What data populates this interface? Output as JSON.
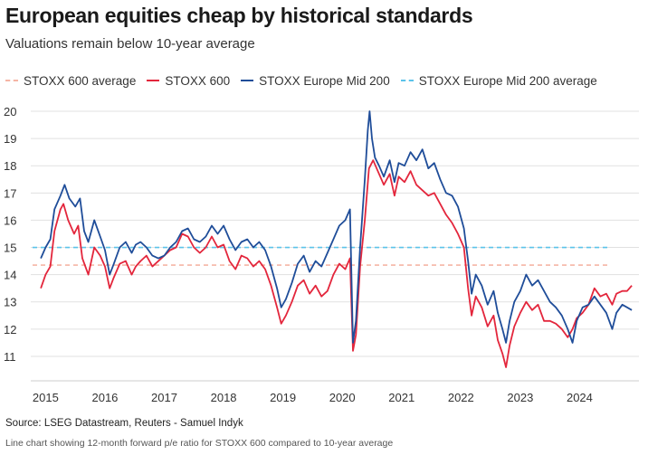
{
  "title": "European equities cheap by historical standards",
  "subtitle": "Valuations remain below 10-year average",
  "source": "Source: LSEG Datastream, Reuters - Samuel Indyk",
  "alt_text": "Line chart showing 12-month forward p/e ratio for STOXX 600 compared to 10-year average",
  "legend": [
    {
      "label": "STOXX 600 average",
      "style": "dash",
      "color": "#f5b5a5"
    },
    {
      "label": "STOXX 600",
      "style": "solid",
      "color": "#e3263c"
    },
    {
      "label": "STOXX Europe Mid 200",
      "style": "solid",
      "color": "#1f4d99"
    },
    {
      "label": "STOXX Europe Mid 200 average",
      "style": "dash",
      "color": "#5bc3ea"
    }
  ],
  "chart_data": {
    "type": "line",
    "ylim": [
      10.5,
      20.2
    ],
    "xlim": [
      2014.75,
      2025.0
    ],
    "y_ticks": [
      20,
      19,
      18,
      17,
      16,
      15,
      14,
      13,
      12,
      11
    ],
    "x_ticks": [
      {
        "value": 2015.0,
        "label": "2015"
      },
      {
        "value": 2016.0,
        "label": "2016"
      },
      {
        "value": 2017.0,
        "label": "2017"
      },
      {
        "value": 2018.0,
        "label": "2018"
      },
      {
        "value": 2019.0,
        "label": "2019"
      },
      {
        "value": 2020.0,
        "label": "2020"
      },
      {
        "value": 2021.0,
        "label": "2021"
      },
      {
        "value": 2022.0,
        "label": "2022"
      },
      {
        "value": 2023.0,
        "label": "2023"
      },
      {
        "value": 2024.0,
        "label": "2024"
      }
    ],
    "grid": "horizontal",
    "legend_position": "top",
    "reference_lines": [
      {
        "name": "STOXX 600 average",
        "y": 14.35,
        "color": "#f5b5a5"
      },
      {
        "name": "STOXX Europe Mid 200 average",
        "y": 15.0,
        "color": "#5bc3ea"
      }
    ],
    "series": [
      {
        "name": "STOXX 600",
        "color": "#e3263c",
        "points": [
          [
            2014.92,
            13.5
          ],
          [
            2015.0,
            14.0
          ],
          [
            2015.08,
            14.3
          ],
          [
            2015.15,
            15.6
          ],
          [
            2015.25,
            16.4
          ],
          [
            2015.3,
            16.6
          ],
          [
            2015.38,
            16.0
          ],
          [
            2015.48,
            15.5
          ],
          [
            2015.55,
            15.8
          ],
          [
            2015.62,
            14.6
          ],
          [
            2015.72,
            14.0
          ],
          [
            2015.82,
            15.0
          ],
          [
            2015.92,
            14.7
          ],
          [
            2016.0,
            14.3
          ],
          [
            2016.08,
            13.5
          ],
          [
            2016.15,
            13.9
          ],
          [
            2016.25,
            14.4
          ],
          [
            2016.35,
            14.5
          ],
          [
            2016.45,
            14.0
          ],
          [
            2016.52,
            14.3
          ],
          [
            2016.6,
            14.5
          ],
          [
            2016.7,
            14.7
          ],
          [
            2016.8,
            14.3
          ],
          [
            2016.9,
            14.5
          ],
          [
            2017.0,
            14.7
          ],
          [
            2017.1,
            14.9
          ],
          [
            2017.2,
            15.0
          ],
          [
            2017.3,
            15.5
          ],
          [
            2017.4,
            15.4
          ],
          [
            2017.5,
            15.0
          ],
          [
            2017.6,
            14.8
          ],
          [
            2017.7,
            15.0
          ],
          [
            2017.8,
            15.4
          ],
          [
            2017.9,
            15.0
          ],
          [
            2018.0,
            15.1
          ],
          [
            2018.1,
            14.5
          ],
          [
            2018.2,
            14.2
          ],
          [
            2018.3,
            14.7
          ],
          [
            2018.4,
            14.6
          ],
          [
            2018.5,
            14.3
          ],
          [
            2018.6,
            14.5
          ],
          [
            2018.7,
            14.2
          ],
          [
            2018.8,
            13.6
          ],
          [
            2018.9,
            12.8
          ],
          [
            2018.97,
            12.2
          ],
          [
            2019.05,
            12.5
          ],
          [
            2019.15,
            13.0
          ],
          [
            2019.25,
            13.6
          ],
          [
            2019.35,
            13.8
          ],
          [
            2019.45,
            13.3
          ],
          [
            2019.55,
            13.6
          ],
          [
            2019.65,
            13.2
          ],
          [
            2019.75,
            13.4
          ],
          [
            2019.85,
            14.0
          ],
          [
            2019.95,
            14.4
          ],
          [
            2020.05,
            14.2
          ],
          [
            2020.13,
            14.6
          ],
          [
            2020.18,
            11.2
          ],
          [
            2020.23,
            11.8
          ],
          [
            2020.3,
            14.3
          ],
          [
            2020.38,
            16.0
          ],
          [
            2020.45,
            17.9
          ],
          [
            2020.52,
            18.2
          ],
          [
            2020.6,
            17.8
          ],
          [
            2020.7,
            17.3
          ],
          [
            2020.8,
            17.7
          ],
          [
            2020.88,
            16.9
          ],
          [
            2020.95,
            17.6
          ],
          [
            2021.05,
            17.4
          ],
          [
            2021.15,
            17.8
          ],
          [
            2021.25,
            17.3
          ],
          [
            2021.35,
            17.1
          ],
          [
            2021.45,
            16.9
          ],
          [
            2021.55,
            17.0
          ],
          [
            2021.65,
            16.6
          ],
          [
            2021.75,
            16.2
          ],
          [
            2021.85,
            15.9
          ],
          [
            2021.95,
            15.5
          ],
          [
            2022.05,
            15.0
          ],
          [
            2022.12,
            13.5
          ],
          [
            2022.18,
            12.5
          ],
          [
            2022.25,
            13.2
          ],
          [
            2022.35,
            12.8
          ],
          [
            2022.45,
            12.1
          ],
          [
            2022.55,
            12.5
          ],
          [
            2022.62,
            11.6
          ],
          [
            2022.7,
            11.1
          ],
          [
            2022.76,
            10.6
          ],
          [
            2022.82,
            11.4
          ],
          [
            2022.9,
            12.1
          ],
          [
            2023.0,
            12.6
          ],
          [
            2023.1,
            13.0
          ],
          [
            2023.2,
            12.7
          ],
          [
            2023.3,
            12.9
          ],
          [
            2023.4,
            12.3
          ],
          [
            2023.5,
            12.3
          ],
          [
            2023.6,
            12.2
          ],
          [
            2023.7,
            12.0
          ],
          [
            2023.8,
            11.7
          ],
          [
            2023.88,
            12.0
          ],
          [
            2023.95,
            12.4
          ],
          [
            2024.05,
            12.6
          ],
          [
            2024.15,
            12.9
          ],
          [
            2024.25,
            13.5
          ],
          [
            2024.35,
            13.2
          ],
          [
            2024.45,
            13.3
          ],
          [
            2024.55,
            12.9
          ],
          [
            2024.62,
            13.3
          ],
          [
            2024.72,
            13.4
          ],
          [
            2024.8,
            13.4
          ],
          [
            2024.88,
            13.6
          ]
        ]
      },
      {
        "name": "STOXX Europe Mid 200",
        "color": "#1f4d99",
        "points": [
          [
            2014.92,
            14.6
          ],
          [
            2015.0,
            15.0
          ],
          [
            2015.08,
            15.3
          ],
          [
            2015.15,
            16.4
          ],
          [
            2015.25,
            16.9
          ],
          [
            2015.32,
            17.3
          ],
          [
            2015.4,
            16.8
          ],
          [
            2015.5,
            16.5
          ],
          [
            2015.58,
            16.8
          ],
          [
            2015.65,
            15.6
          ],
          [
            2015.72,
            15.2
          ],
          [
            2015.82,
            16.0
          ],
          [
            2015.92,
            15.4
          ],
          [
            2016.0,
            14.9
          ],
          [
            2016.08,
            14.0
          ],
          [
            2016.15,
            14.4
          ],
          [
            2016.25,
            15.0
          ],
          [
            2016.35,
            15.2
          ],
          [
            2016.45,
            14.8
          ],
          [
            2016.52,
            15.1
          ],
          [
            2016.6,
            15.2
          ],
          [
            2016.7,
            15.0
          ],
          [
            2016.8,
            14.7
          ],
          [
            2016.9,
            14.6
          ],
          [
            2017.0,
            14.7
          ],
          [
            2017.1,
            15.0
          ],
          [
            2017.2,
            15.2
          ],
          [
            2017.3,
            15.6
          ],
          [
            2017.4,
            15.7
          ],
          [
            2017.5,
            15.3
          ],
          [
            2017.6,
            15.2
          ],
          [
            2017.7,
            15.4
          ],
          [
            2017.8,
            15.8
          ],
          [
            2017.9,
            15.5
          ],
          [
            2018.0,
            15.8
          ],
          [
            2018.1,
            15.3
          ],
          [
            2018.2,
            14.9
          ],
          [
            2018.3,
            15.2
          ],
          [
            2018.4,
            15.3
          ],
          [
            2018.5,
            15.0
          ],
          [
            2018.6,
            15.2
          ],
          [
            2018.7,
            14.9
          ],
          [
            2018.8,
            14.3
          ],
          [
            2018.9,
            13.5
          ],
          [
            2018.97,
            12.8
          ],
          [
            2019.05,
            13.1
          ],
          [
            2019.15,
            13.7
          ],
          [
            2019.25,
            14.4
          ],
          [
            2019.35,
            14.7
          ],
          [
            2019.45,
            14.1
          ],
          [
            2019.55,
            14.5
          ],
          [
            2019.65,
            14.3
          ],
          [
            2019.75,
            14.8
          ],
          [
            2019.85,
            15.3
          ],
          [
            2019.95,
            15.8
          ],
          [
            2020.05,
            16.0
          ],
          [
            2020.13,
            16.4
          ],
          [
            2020.18,
            11.5
          ],
          [
            2020.23,
            12.3
          ],
          [
            2020.3,
            15.0
          ],
          [
            2020.38,
            17.5
          ],
          [
            2020.43,
            19.3
          ],
          [
            2020.46,
            20.0
          ],
          [
            2020.5,
            19.0
          ],
          [
            2020.55,
            18.3
          ],
          [
            2020.62,
            18.0
          ],
          [
            2020.7,
            17.6
          ],
          [
            2020.8,
            18.2
          ],
          [
            2020.88,
            17.4
          ],
          [
            2020.95,
            18.1
          ],
          [
            2021.05,
            18.0
          ],
          [
            2021.15,
            18.5
          ],
          [
            2021.25,
            18.2
          ],
          [
            2021.35,
            18.6
          ],
          [
            2021.45,
            17.9
          ],
          [
            2021.55,
            18.1
          ],
          [
            2021.65,
            17.5
          ],
          [
            2021.75,
            17.0
          ],
          [
            2021.85,
            16.9
          ],
          [
            2021.95,
            16.5
          ],
          [
            2022.05,
            15.7
          ],
          [
            2022.12,
            14.5
          ],
          [
            2022.18,
            13.3
          ],
          [
            2022.25,
            14.0
          ],
          [
            2022.35,
            13.6
          ],
          [
            2022.45,
            12.9
          ],
          [
            2022.55,
            13.4
          ],
          [
            2022.62,
            12.6
          ],
          [
            2022.7,
            12.0
          ],
          [
            2022.76,
            11.5
          ],
          [
            2022.82,
            12.3
          ],
          [
            2022.9,
            13.0
          ],
          [
            2023.0,
            13.4
          ],
          [
            2023.1,
            14.0
          ],
          [
            2023.2,
            13.6
          ],
          [
            2023.3,
            13.8
          ],
          [
            2023.4,
            13.4
          ],
          [
            2023.5,
            13.0
          ],
          [
            2023.6,
            12.8
          ],
          [
            2023.7,
            12.5
          ],
          [
            2023.8,
            12.0
          ],
          [
            2023.88,
            11.5
          ],
          [
            2023.95,
            12.3
          ],
          [
            2024.05,
            12.8
          ],
          [
            2024.15,
            12.9
          ],
          [
            2024.25,
            13.2
          ],
          [
            2024.35,
            12.9
          ],
          [
            2024.45,
            12.6
          ],
          [
            2024.55,
            12.0
          ],
          [
            2024.62,
            12.6
          ],
          [
            2024.72,
            12.9
          ],
          [
            2024.8,
            12.8
          ],
          [
            2024.88,
            12.7
          ]
        ]
      }
    ]
  }
}
